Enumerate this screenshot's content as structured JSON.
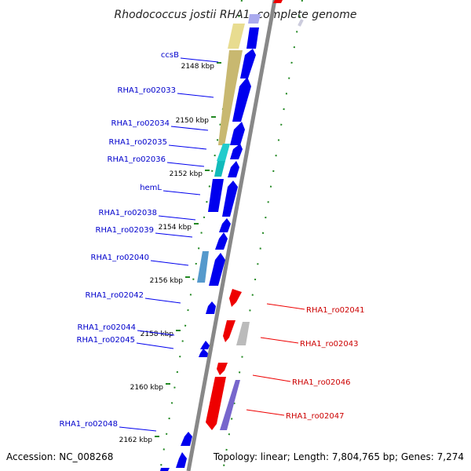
{
  "title": "Rhodococcus jostii RHA1, complete genome",
  "footer": {
    "accession": "Accession: NC_008268",
    "summary": "Topology: linear; Length: 7,804,765 bp; Genes: 7,274"
  },
  "colors": {
    "forward_gene": "#0000ee",
    "reverse_gene": "#ee0000",
    "backbone": "#888888",
    "tick": "#228822",
    "label_blue": "#0000cc",
    "label_red": "#cc0000"
  },
  "kbp_ticks": [
    "2148 kbp",
    "2150 kbp",
    "2152 kbp",
    "2154 kbp",
    "2156 kbp",
    "2158 kbp",
    "2160 kbp",
    "2162 kbp"
  ],
  "forward_genes": [
    "ccsB",
    "RHA1_ro02033",
    "RHA1_ro02034",
    "RHA1_ro02035",
    "RHA1_ro02036",
    "hemL",
    "RHA1_ro02038",
    "RHA1_ro02039",
    "RHA1_ro02040",
    "RHA1_ro02042",
    "RHA1_ro02044",
    "RHA1_ro02045",
    "RHA1_ro02048"
  ],
  "reverse_genes": [
    "RHA1_ro02041",
    "RHA1_ro02043",
    "RHA1_ro02046",
    "RHA1_ro02047"
  ]
}
